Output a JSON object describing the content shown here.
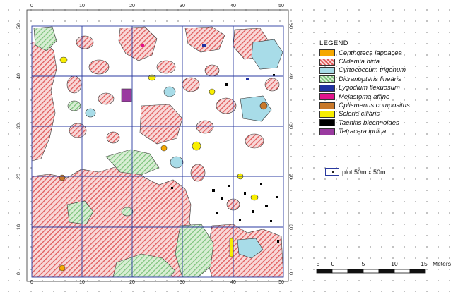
{
  "map": {
    "x_ticks": [
      "0",
      "10",
      "20",
      "30",
      "40",
      "50"
    ],
    "y_ticks": [
      "50",
      "40",
      "30",
      "20",
      "10",
      "0"
    ]
  },
  "legend": {
    "title": "LEGEND",
    "items": [
      {
        "label": "Centhoteca lappacea",
        "color": "#f5a800",
        "pattern": "solid"
      },
      {
        "label": "Clidemia hirta",
        "color": "#e06060",
        "pattern": "hatch-red"
      },
      {
        "label": "Cyrtococcum trigonum",
        "color": "#a8dce8",
        "pattern": "solid"
      },
      {
        "label": "Dicranopteris linearis",
        "color": "#a6d5a0",
        "pattern": "hatch-green"
      },
      {
        "label": "Lygodium flexuosum",
        "color": "#2030a0",
        "pattern": "solid"
      },
      {
        "label": "Melastoma affine",
        "color": "#e0148c",
        "pattern": "solid"
      },
      {
        "label": "Oplismenus compositus",
        "color": "#c8782a",
        "pattern": "solid"
      },
      {
        "label": "Scleria ciliaris",
        "color": "#f8ee00",
        "pattern": "solid"
      },
      {
        "label": "Taenitis blechnoides",
        "color": "#000000",
        "pattern": "solid"
      },
      {
        "label": "Tetracera indica",
        "color": "#9a3aa0",
        "pattern": "solid"
      }
    ]
  },
  "plot_key": {
    "label": "plot 50m x 50m"
  },
  "scale_bar": {
    "labels": [
      "5",
      "0",
      "5",
      "10",
      "15"
    ],
    "unit": "Meters"
  }
}
